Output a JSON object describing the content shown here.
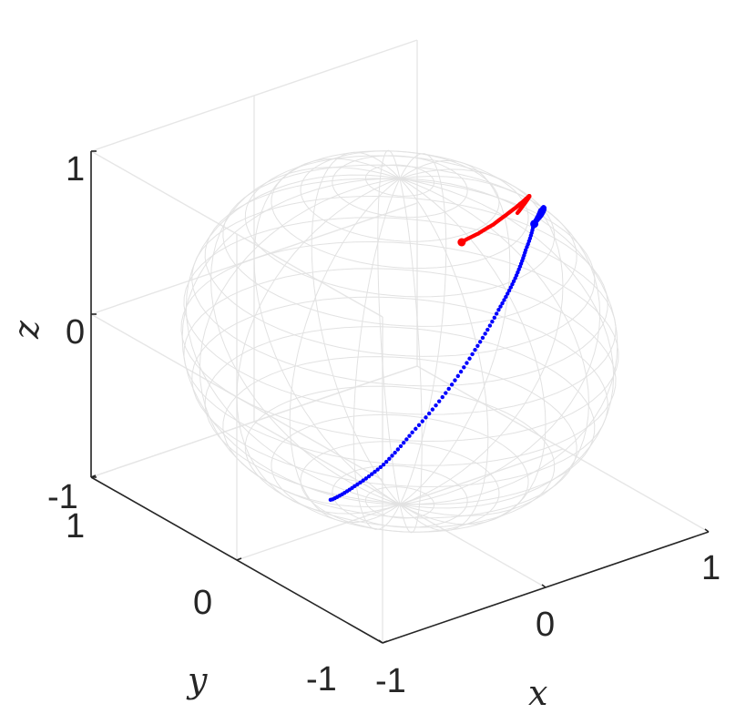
{
  "chart_data": {
    "type": "scatter",
    "title": "",
    "view": "3d-sphere",
    "xlabel": "x",
    "ylabel": "y",
    "zlabel": "z",
    "xlim": [
      -1,
      1
    ],
    "ylim": [
      -1,
      1
    ],
    "zlim": [
      -1,
      1
    ],
    "xticks": [
      "-1",
      "0",
      "1"
    ],
    "yticks": [
      "1",
      "0",
      "-1"
    ],
    "zticks": [
      "1",
      "0",
      "-1"
    ],
    "grid": true,
    "sphere": {
      "radius": 1,
      "wireframe": true,
      "color": "#e2e2e2"
    },
    "colors": {
      "axis": "#262626",
      "grid": "#e6e6e6",
      "series_red": "#ff0000",
      "series_blue": "#0000ff"
    },
    "series": [
      {
        "color": "#ff0000",
        "points": [
          [
            -0.05,
            -0.48,
            0.87
          ],
          [
            0.06,
            -0.47,
            0.88
          ],
          [
            0.18,
            -0.44,
            0.88
          ],
          [
            0.3,
            -0.39,
            0.87
          ],
          [
            0.42,
            -0.33,
            0.85
          ],
          [
            0.52,
            -0.26,
            0.81
          ],
          [
            0.62,
            -0.18,
            0.76
          ],
          [
            0.7,
            -0.1,
            0.7
          ],
          [
            0.77,
            -0.02,
            0.63
          ],
          [
            0.83,
            0.06,
            0.55
          ],
          [
            0.87,
            0.13,
            0.47
          ],
          [
            0.9,
            0.2,
            0.38
          ]
        ]
      },
      {
        "color": "#0000ff",
        "points": [
          [
            0.44,
            -0.43,
            0.79
          ],
          [
            0.56,
            -0.34,
            0.75
          ],
          [
            0.67,
            -0.24,
            0.7
          ],
          [
            0.77,
            -0.12,
            0.62
          ],
          [
            0.86,
            0.0,
            0.51
          ],
          [
            0.93,
            0.12,
            0.35
          ],
          [
            0.97,
            0.22,
            0.12
          ],
          [
            0.96,
            0.28,
            -0.08
          ],
          [
            0.9,
            0.33,
            -0.28
          ],
          [
            0.78,
            0.36,
            -0.5
          ],
          [
            0.6,
            0.36,
            -0.7
          ],
          [
            0.38,
            0.34,
            -0.86
          ],
          [
            0.15,
            0.28,
            -0.95
          ],
          [
            -0.08,
            0.22,
            -0.97
          ],
          [
            -0.3,
            0.14,
            -0.94
          ]
        ]
      }
    ]
  }
}
